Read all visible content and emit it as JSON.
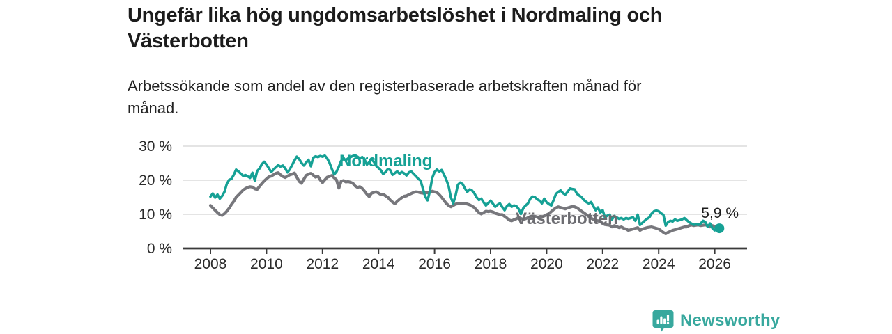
{
  "header": {
    "title_lines": [
      "Ungefär lika hög ungdomsarbetslöshet i Nordmaling och",
      "Västerbotten"
    ],
    "subtitle_lines": [
      "Arbetssökande som andel av den registerbaserade arbetskraften månad för",
      "månad."
    ]
  },
  "chart_data": {
    "type": "line",
    "title": "Ungefär lika hög ungdomsarbetslöshet i Nordmaling och Västerbotten",
    "subtitle": "Arbetssökande som andel av den registerbaserade arbetskraften månad för månad.",
    "x_unit": "month",
    "x_start": "2008-01",
    "x_end": "2026-03",
    "x_tick_labels": [
      "2008",
      "2010",
      "2012",
      "2014",
      "2016",
      "2018",
      "2020",
      "2022",
      "2024",
      "2026"
    ],
    "y_tick_labels": [
      "0 %",
      "10 %",
      "20 %",
      "30 %"
    ],
    "y_tick_values": [
      0,
      10,
      20,
      30
    ],
    "ylim": [
      0,
      30
    ],
    "grid": true,
    "legend_position": "inline-labels",
    "axis_color": "#3a3a3a",
    "grid_color": "#dbdbdb",
    "tick_text_color": "#2b2b2b",
    "annotation_color": "#1c1c1c",
    "series": [
      {
        "name": "Västerbotten",
        "color": "#77777c",
        "label_color": "#6c6c71",
        "values": [
          12.6,
          11.9,
          11.2,
          10.5,
          9.9,
          9.7,
          10.2,
          10.9,
          11.8,
          12.9,
          13.8,
          15.0,
          15.7,
          16.4,
          17.1,
          17.6,
          17.9,
          18.1,
          18.0,
          17.5,
          17.3,
          18.2,
          19.0,
          19.8,
          20.4,
          21.0,
          21.2,
          21.6,
          22.0,
          22.2,
          21.6,
          21.1,
          20.8,
          21.2,
          21.6,
          21.8,
          22.1,
          20.9,
          19.7,
          19.1,
          20.3,
          21.4,
          21.8,
          22.0,
          21.5,
          20.9,
          21.2,
          20.1,
          19.3,
          20.1,
          20.9,
          21.1,
          21.4,
          20.7,
          20.1,
          17.7,
          19.7,
          19.9,
          19.5,
          19.6,
          19.4,
          19.1,
          18.3,
          17.9,
          18.1,
          17.6,
          16.8,
          15.9,
          15.2,
          16.2,
          16.4,
          16.6,
          16.2,
          15.8,
          15.9,
          15.4,
          15.0,
          14.2,
          13.6,
          13.1,
          13.8,
          14.4,
          14.9,
          15.3,
          15.4,
          15.8,
          16.1,
          16.4,
          16.6,
          16.5,
          16.3,
          16.2,
          16.4,
          16.3,
          16.5,
          16.8,
          16.6,
          16.4,
          15.8,
          15.0,
          14.1,
          13.2,
          12.6,
          12.2,
          12.6,
          13.0,
          13.1,
          13.2,
          13.1,
          13.2,
          13.0,
          12.8,
          12.4,
          12.0,
          11.2,
          10.5,
          10.1,
          10.5,
          10.9,
          10.8,
          10.9,
          10.7,
          10.3,
          10.1,
          9.9,
          9.9,
          9.4,
          8.9,
          8.3,
          8.1,
          8.4,
          8.7,
          9.1,
          8.8,
          8.5,
          8.7,
          9.0,
          9.3,
          9.5,
          9.4,
          9.2,
          9.0,
          9.2,
          9.5,
          9.9,
          10.2,
          10.8,
          11.4,
          11.9,
          12.2,
          12.0,
          11.8,
          11.6,
          11.9,
          12.1,
          12.3,
          12.2,
          11.9,
          11.4,
          10.9,
          10.4,
          9.9,
          9.4,
          8.9,
          8.5,
          8.2,
          8.1,
          7.9,
          7.3,
          7.0,
          6.9,
          6.8,
          6.3,
          6.7,
          6.4,
          6.1,
          6.3,
          5.9,
          5.7,
          5.3,
          5.5,
          5.7,
          5.9,
          6.1,
          5.3,
          5.7,
          5.9,
          6.1,
          6.2,
          6.3,
          6.1,
          5.9,
          5.7,
          5.2,
          4.7,
          4.3,
          4.7,
          5.0,
          5.3,
          5.5,
          5.7,
          5.9,
          6.1,
          6.3,
          6.3,
          6.7,
          6.9,
          6.7,
          6.8,
          6.9,
          6.7,
          6.8,
          6.9,
          6.7,
          6.3,
          6.7,
          6.5,
          6.3
        ]
      },
      {
        "name": "Nordmaling",
        "color": "#16a195",
        "label_color": "#16a195",
        "values": [
          15.2,
          16.1,
          14.9,
          15.8,
          14.6,
          15.4,
          16.6,
          18.9,
          20.1,
          20.4,
          21.6,
          23.1,
          22.6,
          21.9,
          21.3,
          21.5,
          21.1,
          20.7,
          22.2,
          19.9,
          22.7,
          23.4,
          24.7,
          25.4,
          24.6,
          23.5,
          22.4,
          23.1,
          23.8,
          24.4,
          24.0,
          24.3,
          23.5,
          22.3,
          23.2,
          24.5,
          25.8,
          26.9,
          26.2,
          25.1,
          24.3,
          25.2,
          26.0,
          24.1,
          26.6,
          27.0,
          26.8,
          27.1,
          26.9,
          27.2,
          26.4,
          25.1,
          23.3,
          21.7,
          22.5,
          24.0,
          25.7,
          26.3,
          25.9,
          26.4,
          26.8,
          27.1,
          27.3,
          26.9,
          26.4,
          26.8,
          26.1,
          24.6,
          25.3,
          26.1,
          25.4,
          24.2,
          23.6,
          22.9,
          21.8,
          22.4,
          23.3,
          23.0,
          21.6,
          22.1,
          22.6,
          21.9,
          22.4,
          22.0,
          21.4,
          22.3,
          22.6,
          21.9,
          21.2,
          20.4,
          19.9,
          17.5,
          15.2,
          14.1,
          16.8,
          20.7,
          22.4,
          23.1,
          22.6,
          23.0,
          21.7,
          20.2,
          18.3,
          14.9,
          13.2,
          15.6,
          18.7,
          19.3,
          18.9,
          17.6,
          16.6,
          17.3,
          17.0,
          16.2,
          15.0,
          14.2,
          14.6,
          13.5,
          12.6,
          13.3,
          14.0,
          13.1,
          12.2,
          12.8,
          13.2,
          12.1,
          11.2,
          12.4,
          13.0,
          12.2,
          12.6,
          12.4,
          11.6,
          10.1,
          11.8,
          12.6,
          13.2,
          14.6,
          15.2,
          15.0,
          14.4,
          14.0,
          13.2,
          14.6,
          13.5,
          13.0,
          12.6,
          14.2,
          16.0,
          16.6,
          17.0,
          16.2,
          15.8,
          16.6,
          17.6,
          17.4,
          17.3,
          16.0,
          15.5,
          15.0,
          14.2,
          13.6,
          13.2,
          13.6,
          12.4,
          11.2,
          12.0,
          10.5,
          11.2,
          9.1,
          9.6,
          9.9,
          8.5,
          9.5,
          9.1,
          8.7,
          8.9,
          8.5,
          8.9,
          8.7,
          8.9,
          9.1,
          8.1,
          9.9,
          6.9,
          7.5,
          8.1,
          8.7,
          9.1,
          10.2,
          10.9,
          11.1,
          10.9,
          10.3,
          9.9,
          6.7,
          7.7,
          8.1,
          7.9,
          8.5,
          8.1,
          8.3,
          8.5,
          8.9,
          8.3,
          7.7,
          7.3,
          6.9,
          7.1,
          6.9,
          7.3,
          8.1,
          7.7,
          6.3,
          7.3,
          5.9,
          5.3,
          6.1,
          5.9
        ]
      }
    ],
    "end_annotation": {
      "text": "5,9 %",
      "series": "Nordmaling",
      "value": 5.9
    }
  },
  "footer": {
    "brand": "Newsworthy",
    "brand_color": "#38a89e",
    "brand_icon": "bar-chart-speech-bubble-icon"
  }
}
